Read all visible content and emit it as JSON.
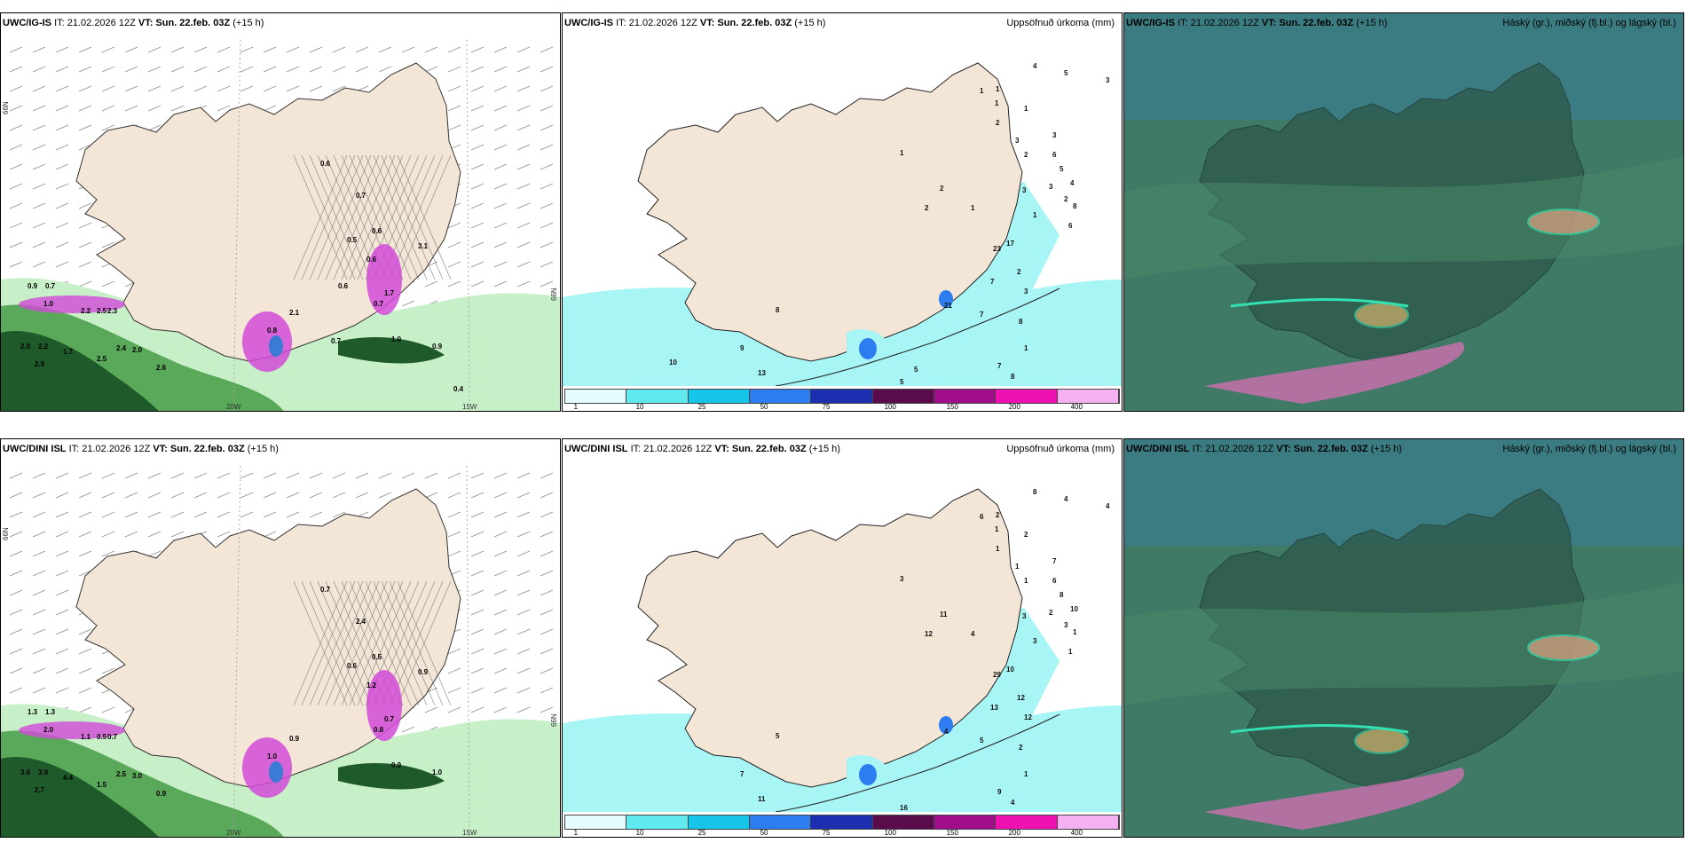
{
  "colors": {
    "land": "#f4e6d6",
    "sea_precip_light": "#a8f5f5",
    "precip_blue": "#3a7bd5",
    "precip_magenta": "#d24ad8",
    "green_light": "#c8f0c8",
    "green_mid": "#5aa85a",
    "green_dark": "#1e5a2a",
    "cloud_dark": "#2e5a4c",
    "cloud_mid": "#3f7a66"
  },
  "legend": {
    "labels": [
      "1",
      "10",
      "25",
      "50",
      "75",
      "100",
      "150",
      "200",
      "400"
    ],
    "colors": [
      "#e6fbfb",
      "#60eaf0",
      "#17c5e8",
      "#2d7cf0",
      "#1b2fb0",
      "#5a0c4a",
      "#a00c8a",
      "#ee10b0",
      "#f4b0f0"
    ]
  },
  "rows": [
    {
      "model": "UWC/IG-IS",
      "it": "IT: 21.02.2026 12Z",
      "vt_label": "VT:",
      "vt": "Sun. 22.feb. 03Z",
      "lead": "(+15 h)",
      "precip_title": "Uppsöfnuð úrkoma (mm)",
      "cloud_title": "Háský (gr.), miðský (fj.bl.) og lágský (bl.)",
      "axis": {
        "lat": "66N",
        "lat_right": "66N",
        "lon_w": "20W",
        "lon_e": "15W"
      },
      "snow_labels": [
        "0.9",
        "0.7",
        "1.0",
        "2.2",
        "2.5",
        "2.3",
        "2.0",
        "2.2",
        "1.7",
        "2.9",
        "2.5",
        "2.4",
        "2.0",
        "2.6",
        "0.6",
        "0.7",
        "0.6",
        "0.6",
        "3.1",
        "0.5",
        "1.7",
        "0.7",
        "2.1",
        "0.8",
        "1.0",
        "0.9",
        "0.7",
        "0.4",
        "0.6"
      ],
      "precip_labels": [
        "4",
        "5",
        "3",
        "1",
        "1",
        "1",
        "2",
        "1",
        "3",
        "2",
        "3",
        "6",
        "5",
        "4",
        "3",
        "8",
        "6",
        "2",
        "3",
        "1",
        "1",
        "2",
        "2",
        "1",
        "23",
        "17",
        "2",
        "7",
        "3",
        "8",
        "1",
        "9",
        "8",
        "21",
        "7",
        "7",
        "8",
        "13",
        "5",
        "5",
        "10"
      ]
    },
    {
      "model": "UWC/DINI ISL",
      "it": "IT: 21.02.2026 12Z",
      "vt_label": "VT:",
      "vt": "Sun. 22.feb. 03Z",
      "lead": "(+15 h)",
      "precip_title": "Uppsöfnuð úrkoma (mm)",
      "cloud_title": "Háský (gr.), miðský (fj.bl.) og lágský (bl.)",
      "axis": {
        "lat": "66N",
        "lat_right": "66N",
        "lon_w": "20W",
        "lon_e": "15W"
      },
      "snow_labels": [
        "1.3",
        "1.3",
        "2.0",
        "1.1",
        "0.5",
        "0.7",
        "3.6",
        "3.9",
        "4.4",
        "2.7",
        "1.5",
        "2.5",
        "3.0",
        "0.9",
        "0.7",
        "2.4",
        "0.5",
        "1.2",
        "0.9",
        "0.6",
        "0.7",
        "0.8",
        "0.9",
        "1.0",
        "0.9",
        "1.0"
      ],
      "precip_labels": [
        "8",
        "4",
        "4",
        "6",
        "2",
        "1",
        "1",
        "2",
        "1",
        "1",
        "7",
        "6",
        "8",
        "10",
        "2",
        "1",
        "1",
        "3",
        "3",
        "3",
        "3",
        "12",
        "11",
        "4",
        "29",
        "10",
        "12",
        "13",
        "12",
        "2",
        "1",
        "7",
        "5",
        "4",
        "5",
        "9",
        "4",
        "11",
        "16"
      ]
    }
  ]
}
